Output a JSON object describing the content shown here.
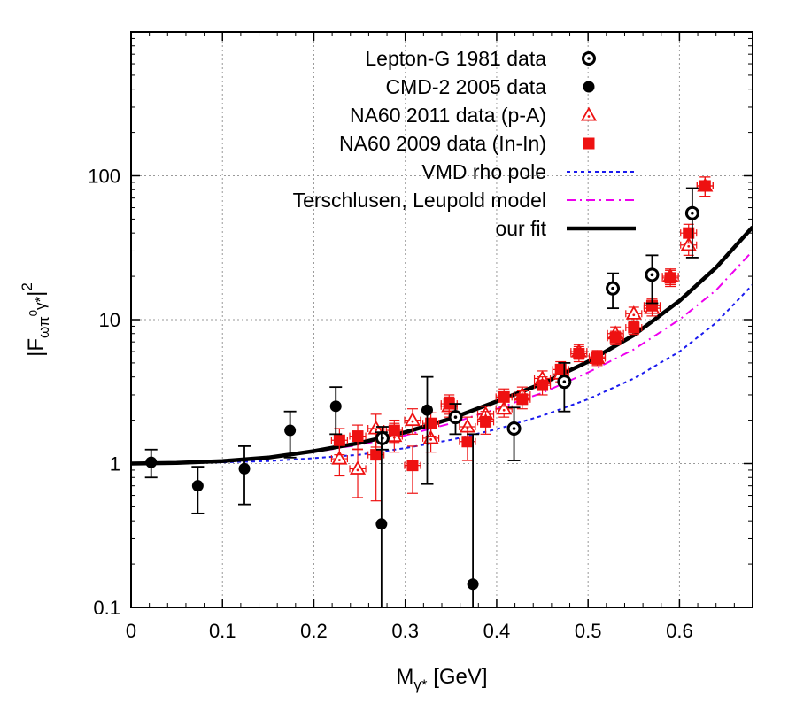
{
  "chart_data": {
    "type": "scatter",
    "yscale": "log",
    "xlim": [
      0,
      0.68
    ],
    "ylim": [
      0.1,
      1000
    ],
    "grid": true,
    "legend_position": "top-right",
    "xlabel": {
      "main": "M",
      "sub": "γ*",
      "unit": " [GeV]"
    },
    "ylabel": {
      "pre": "|F",
      "sub": "ωπ",
      "sup_inner": "0",
      "sub_tail": "γ*",
      "post": "|",
      "sup": "2"
    },
    "x_ticks": [
      {
        "value": 0,
        "label": "0"
      },
      {
        "value": 0.1,
        "label": "0.1"
      },
      {
        "value": 0.2,
        "label": "0.2"
      },
      {
        "value": 0.3,
        "label": "0.3"
      },
      {
        "value": 0.4,
        "label": "0.4"
      },
      {
        "value": 0.5,
        "label": "0.5"
      },
      {
        "value": 0.6,
        "label": "0.6"
      }
    ],
    "y_ticks": [
      {
        "value": 0.1,
        "label": "0.1"
      },
      {
        "value": 1,
        "label": "1"
      },
      {
        "value": 10,
        "label": "10"
      },
      {
        "value": 100,
        "label": "100"
      }
    ],
    "series": [
      {
        "name": "Lepton-G 1981 data",
        "marker": "open-circle-dot",
        "color": "#000000",
        "points": [
          {
            "x": 0.275,
            "y": 1.5,
            "ylo": 1.25,
            "yhi": 1.8
          },
          {
            "x": 0.355,
            "y": 2.1,
            "ylo": 1.6,
            "yhi": 2.6
          },
          {
            "x": 0.419,
            "y": 1.75,
            "ylo": 1.05,
            "yhi": 2.45
          },
          {
            "x": 0.474,
            "y": 3.7,
            "ylo": 2.3,
            "yhi": 5.0
          },
          {
            "x": 0.527,
            "y": 16.5,
            "ylo": 12.0,
            "yhi": 21.0
          },
          {
            "x": 0.57,
            "y": 20.5,
            "ylo": 13.0,
            "yhi": 28.0
          },
          {
            "x": 0.614,
            "y": 55,
            "ylo": 27,
            "yhi": 82
          }
        ]
      },
      {
        "name": "CMD-2 2005 data",
        "marker": "filled-circle",
        "color": "#000000",
        "points": [
          {
            "x": 0.022,
            "y": 1.02,
            "ylo": 0.8,
            "yhi": 1.25
          },
          {
            "x": 0.073,
            "y": 0.7,
            "ylo": 0.45,
            "yhi": 0.95
          },
          {
            "x": 0.124,
            "y": 0.92,
            "ylo": 0.52,
            "yhi": 1.32
          },
          {
            "x": 0.174,
            "y": 1.7,
            "ylo": 1.1,
            "yhi": 2.3
          },
          {
            "x": 0.224,
            "y": 2.5,
            "ylo": 1.6,
            "yhi": 3.4
          },
          {
            "x": 0.274,
            "y": 0.38,
            "ylo": 0.1,
            "yhi": 1.65
          },
          {
            "x": 0.324,
            "y": 2.35,
            "ylo": 0.72,
            "yhi": 4.0
          },
          {
            "x": 0.374,
            "y": 0.145,
            "ylo": 0.1,
            "yhi": 1.6
          }
        ]
      },
      {
        "name": "NA60 2011 data (p-A)",
        "marker": "open-triangle",
        "color": "#ee1111",
        "points": [
          {
            "x": 0.228,
            "y": 1.08,
            "ylo": 0.82,
            "yhi": 1.34
          },
          {
            "x": 0.248,
            "y": 0.92,
            "ylo": 0.58,
            "yhi": 1.26
          },
          {
            "x": 0.268,
            "y": 1.75,
            "ylo": 1.3,
            "yhi": 2.2
          },
          {
            "x": 0.288,
            "y": 1.55,
            "ylo": 1.2,
            "yhi": 1.9
          },
          {
            "x": 0.308,
            "y": 2.0,
            "ylo": 1.6,
            "yhi": 2.4
          },
          {
            "x": 0.328,
            "y": 1.5,
            "ylo": 1.2,
            "yhi": 1.8
          },
          {
            "x": 0.348,
            "y": 2.5,
            "ylo": 2.1,
            "yhi": 2.9
          },
          {
            "x": 0.368,
            "y": 1.8,
            "ylo": 1.5,
            "yhi": 2.1
          },
          {
            "x": 0.388,
            "y": 2.2,
            "ylo": 1.9,
            "yhi": 2.5
          },
          {
            "x": 0.408,
            "y": 2.4,
            "ylo": 2.1,
            "yhi": 2.7
          },
          {
            "x": 0.428,
            "y": 3.0,
            "ylo": 2.6,
            "yhi": 3.4
          },
          {
            "x": 0.45,
            "y": 3.9,
            "ylo": 3.4,
            "yhi": 4.4
          },
          {
            "x": 0.47,
            "y": 4.2,
            "ylo": 3.7,
            "yhi": 4.7
          },
          {
            "x": 0.49,
            "y": 6.0,
            "ylo": 5.3,
            "yhi": 6.7
          },
          {
            "x": 0.51,
            "y": 5.4,
            "ylo": 4.8,
            "yhi": 6.0
          },
          {
            "x": 0.53,
            "y": 8.0,
            "ylo": 7.1,
            "yhi": 8.9
          },
          {
            "x": 0.55,
            "y": 11.0,
            "ylo": 9.8,
            "yhi": 12.2
          },
          {
            "x": 0.57,
            "y": 12.0,
            "ylo": 10.6,
            "yhi": 13.4
          },
          {
            "x": 0.59,
            "y": 20.0,
            "ylo": 17.5,
            "yhi": 22.5
          },
          {
            "x": 0.61,
            "y": 33.0,
            "ylo": 28.0,
            "yhi": 38.0
          },
          {
            "x": 0.628,
            "y": 85.0,
            "ylo": 72.0,
            "yhi": 98.0
          }
        ]
      },
      {
        "name": "NA60 2009 data (In-In)",
        "marker": "filled-square",
        "color": "#ee1111",
        "points": [
          {
            "x": 0.228,
            "y": 1.45,
            "ylo": 1.15,
            "yhi": 1.75
          },
          {
            "x": 0.248,
            "y": 1.55,
            "ylo": 1.25,
            "yhi": 1.85
          },
          {
            "x": 0.268,
            "y": 1.15,
            "ylo": 0.55,
            "yhi": 1.75
          },
          {
            "x": 0.288,
            "y": 1.7,
            "ylo": 1.4,
            "yhi": 2.0
          },
          {
            "x": 0.308,
            "y": 0.97,
            "ylo": 0.62,
            "yhi": 1.32
          },
          {
            "x": 0.328,
            "y": 1.9,
            "ylo": 1.55,
            "yhi": 2.25
          },
          {
            "x": 0.348,
            "y": 2.6,
            "ylo": 2.2,
            "yhi": 3.0
          },
          {
            "x": 0.368,
            "y": 1.42,
            "ylo": 1.05,
            "yhi": 1.8
          },
          {
            "x": 0.388,
            "y": 1.95,
            "ylo": 1.6,
            "yhi": 2.3
          },
          {
            "x": 0.408,
            "y": 2.9,
            "ylo": 2.5,
            "yhi": 3.3
          },
          {
            "x": 0.428,
            "y": 2.8,
            "ylo": 2.4,
            "yhi": 3.2
          },
          {
            "x": 0.45,
            "y": 3.5,
            "ylo": 3.0,
            "yhi": 4.0
          },
          {
            "x": 0.47,
            "y": 4.5,
            "ylo": 3.9,
            "yhi": 5.1
          },
          {
            "x": 0.49,
            "y": 5.8,
            "ylo": 5.1,
            "yhi": 6.5
          },
          {
            "x": 0.51,
            "y": 5.5,
            "ylo": 4.9,
            "yhi": 6.1
          },
          {
            "x": 0.53,
            "y": 7.5,
            "ylo": 6.7,
            "yhi": 8.3
          },
          {
            "x": 0.55,
            "y": 8.8,
            "ylo": 7.9,
            "yhi": 9.7
          },
          {
            "x": 0.57,
            "y": 12.5,
            "ylo": 11.1,
            "yhi": 13.9
          },
          {
            "x": 0.59,
            "y": 19.5,
            "ylo": 17.0,
            "yhi": 22.0
          },
          {
            "x": 0.61,
            "y": 40.0,
            "ylo": 34.0,
            "yhi": 46.0
          },
          {
            "x": 0.628,
            "y": 85.0,
            "ylo": 72.0,
            "yhi": 98.0
          }
        ]
      },
      {
        "name": "VMD rho pole",
        "style": "dotted",
        "color": "#1a1aee",
        "curve": [
          {
            "x": 0.0,
            "y": 1.0
          },
          {
            "x": 0.05,
            "y": 1.006
          },
          {
            "x": 0.1,
            "y": 1.02
          },
          {
            "x": 0.15,
            "y": 1.04
          },
          {
            "x": 0.2,
            "y": 1.09
          },
          {
            "x": 0.25,
            "y": 1.15
          },
          {
            "x": 0.3,
            "y": 1.28
          },
          {
            "x": 0.35,
            "y": 1.46
          },
          {
            "x": 0.4,
            "y": 1.73
          },
          {
            "x": 0.45,
            "y": 2.15
          },
          {
            "x": 0.5,
            "y": 2.8
          },
          {
            "x": 0.55,
            "y": 3.9
          },
          {
            "x": 0.6,
            "y": 6.0
          },
          {
            "x": 0.64,
            "y": 9.5
          },
          {
            "x": 0.68,
            "y": 17.5
          }
        ]
      },
      {
        "name": "Terschlusen, Leupold model",
        "style": "dash-dot",
        "color": "#ee00ee",
        "curve": [
          {
            "x": 0.0,
            "y": 1.0
          },
          {
            "x": 0.05,
            "y": 1.01
          },
          {
            "x": 0.1,
            "y": 1.04
          },
          {
            "x": 0.15,
            "y": 1.1
          },
          {
            "x": 0.2,
            "y": 1.2
          },
          {
            "x": 0.25,
            "y": 1.35
          },
          {
            "x": 0.3,
            "y": 1.57
          },
          {
            "x": 0.35,
            "y": 1.9
          },
          {
            "x": 0.4,
            "y": 2.4
          },
          {
            "x": 0.45,
            "y": 3.1
          },
          {
            "x": 0.5,
            "y": 4.3
          },
          {
            "x": 0.55,
            "y": 6.2
          },
          {
            "x": 0.6,
            "y": 10.0
          },
          {
            "x": 0.64,
            "y": 16.0
          },
          {
            "x": 0.68,
            "y": 30.0
          }
        ]
      },
      {
        "name": "our fit",
        "style": "solid-thick",
        "color": "#000000",
        "curve": [
          {
            "x": 0.0,
            "y": 1.0
          },
          {
            "x": 0.05,
            "y": 1.01
          },
          {
            "x": 0.1,
            "y": 1.04
          },
          {
            "x": 0.15,
            "y": 1.1
          },
          {
            "x": 0.2,
            "y": 1.22
          },
          {
            "x": 0.25,
            "y": 1.39
          },
          {
            "x": 0.3,
            "y": 1.65
          },
          {
            "x": 0.35,
            "y": 2.05
          },
          {
            "x": 0.4,
            "y": 2.7
          },
          {
            "x": 0.45,
            "y": 3.6
          },
          {
            "x": 0.5,
            "y": 5.1
          },
          {
            "x": 0.55,
            "y": 7.8
          },
          {
            "x": 0.6,
            "y": 13.5
          },
          {
            "x": 0.64,
            "y": 23.0
          },
          {
            "x": 0.68,
            "y": 44.0
          }
        ]
      }
    ]
  }
}
